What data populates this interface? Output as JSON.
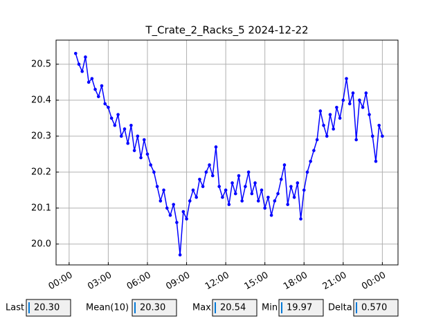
{
  "chart_data": {
    "type": "line",
    "title": "T_Crate_2_Racks_5 2024-12-22",
    "x": [
      0.5,
      0.75,
      1,
      1.25,
      1.5,
      1.75,
      2,
      2.25,
      2.5,
      2.75,
      3,
      3.25,
      3.5,
      3.75,
      4,
      4.25,
      4.5,
      4.75,
      5,
      5.25,
      5.5,
      5.75,
      6,
      6.25,
      6.5,
      6.75,
      7,
      7.25,
      7.5,
      7.75,
      8,
      8.25,
      8.5,
      8.75,
      9,
      9.25,
      9.5,
      9.75,
      10,
      10.25,
      10.5,
      10.75,
      11,
      11.25,
      11.5,
      11.75,
      12,
      12.25,
      12.5,
      12.75,
      13,
      13.25,
      13.5,
      13.75,
      14,
      14.25,
      14.5,
      14.75,
      15,
      15.25,
      15.5,
      15.75,
      16,
      16.25,
      16.5,
      16.75,
      17,
      17.25,
      17.5,
      17.75,
      18,
      18.25,
      18.5,
      18.75,
      19,
      19.25,
      19.5,
      19.75,
      20,
      20.25,
      20.5,
      20.75,
      21,
      21.25,
      21.5,
      21.75,
      22,
      22.25,
      22.5,
      22.75,
      23,
      23.25,
      23.5,
      23.75,
      24
    ],
    "series": [
      {
        "name": "T_Crate_2_Racks_5",
        "color": "#0000ff",
        "values": [
          20.53,
          20.5,
          20.48,
          20.52,
          20.45,
          20.46,
          20.43,
          20.41,
          20.44,
          20.39,
          20.38,
          20.35,
          20.33,
          20.36,
          20.3,
          20.32,
          20.28,
          20.33,
          20.26,
          20.3,
          20.24,
          20.29,
          20.25,
          20.22,
          20.2,
          20.16,
          20.12,
          20.15,
          20.1,
          20.08,
          20.11,
          20.06,
          19.97,
          20.09,
          20.07,
          20.12,
          20.15,
          20.13,
          20.18,
          20.16,
          20.2,
          20.22,
          20.19,
          20.27,
          20.16,
          20.13,
          20.15,
          20.11,
          20.17,
          20.14,
          20.19,
          20.12,
          20.16,
          20.2,
          20.14,
          20.17,
          20.12,
          20.15,
          20.1,
          20.13,
          20.08,
          20.12,
          20.14,
          20.18,
          20.22,
          20.11,
          20.16,
          20.13,
          20.17,
          20.07,
          20.15,
          20.2,
          20.23,
          20.26,
          20.29,
          20.37,
          20.33,
          20.3,
          20.36,
          20.32,
          20.38,
          20.35,
          20.4,
          20.46,
          20.39,
          20.42,
          20.29,
          20.4,
          20.38,
          20.42,
          20.36,
          20.3,
          20.23,
          20.33,
          20.3
        ]
      }
    ],
    "xlim": [
      -1,
      25.2
    ],
    "ylim": [
      19.942,
      20.567
    ],
    "xticks": [
      {
        "value": 0,
        "label": "00:00"
      },
      {
        "value": 3,
        "label": "03:00"
      },
      {
        "value": 6,
        "label": "06:00"
      },
      {
        "value": 9,
        "label": "09:00"
      },
      {
        "value": 12,
        "label": "12:00"
      },
      {
        "value": 15,
        "label": "15:00"
      },
      {
        "value": 18,
        "label": "18:00"
      },
      {
        "value": 21,
        "label": "21:00"
      },
      {
        "value": 24,
        "label": "00:00"
      }
    ],
    "yticks": [
      {
        "value": 20,
        "label": "20.0"
      },
      20.1,
      20.2,
      20.3,
      20.4,
      20.5
    ],
    "grid": true
  },
  "stats": [
    {
      "label": "Last",
      "value": "20.30"
    },
    {
      "label": "Mean(10)",
      "value": "20.30"
    },
    {
      "label": "Max",
      "value": "20.54"
    },
    {
      "label": "Min",
      "value": "19.97"
    },
    {
      "label": "Delta",
      "value": "0.570"
    }
  ]
}
